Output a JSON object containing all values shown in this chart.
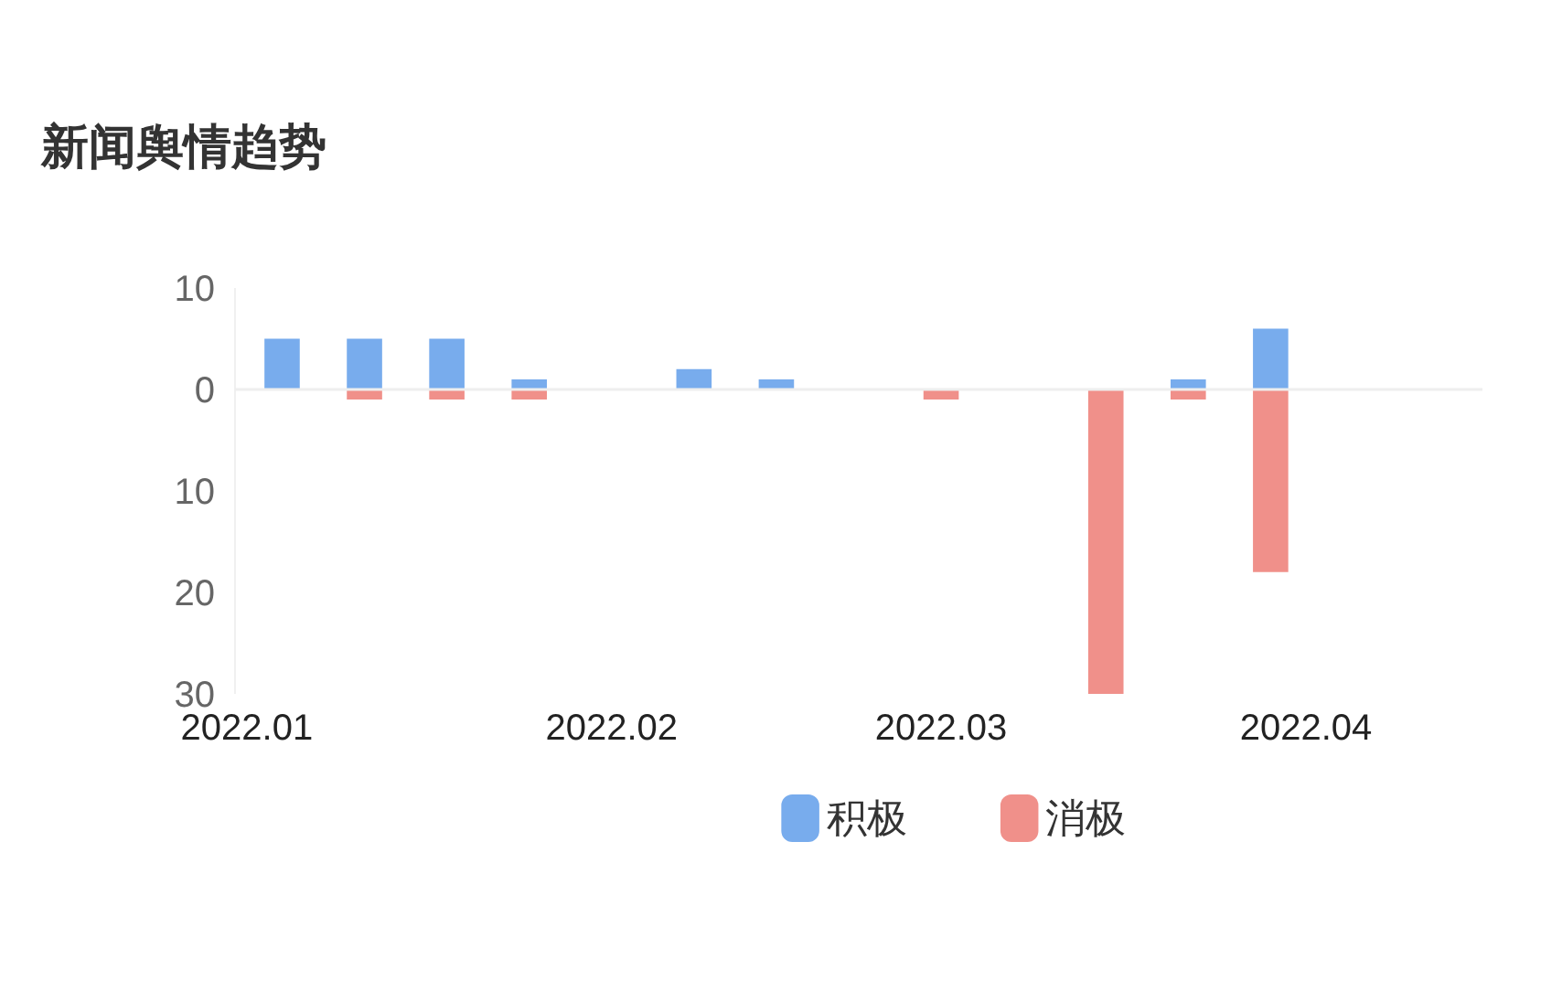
{
  "chart_data": {
    "type": "bar",
    "title": "新闻舆情趋势",
    "x": [
      "2022-01-04",
      "2022-01-11",
      "2022-01-18",
      "2022-01-25",
      "2022-02-01",
      "2022-02-08",
      "2022-02-15",
      "2022-02-22",
      "2022-03-01",
      "2022-03-08",
      "2022-03-15",
      "2022-03-22",
      "2022-03-29"
    ],
    "series": [
      {
        "name": "积极",
        "color": "#78aced",
        "values": [
          5,
          5,
          5,
          1,
          0,
          2,
          1,
          0,
          0,
          0,
          0,
          1,
          6
        ]
      },
      {
        "name": "消极",
        "color": "#f0908a",
        "values": [
          0,
          -1,
          -1,
          -1,
          0,
          0,
          0,
          0,
          -1,
          0,
          -30,
          -1,
          -18
        ]
      }
    ],
    "xlim": [
      "2021-12-31",
      "2022-04-16"
    ],
    "xticks": [
      {
        "value": "2022-01-01",
        "label": "2022.01"
      },
      {
        "value": "2022-02-01",
        "label": "2022.02"
      },
      {
        "value": "2022-03-01",
        "label": "2022.03"
      },
      {
        "value": "2022-04-01",
        "label": "2022.04"
      }
    ],
    "ylim": [
      -30,
      10
    ],
    "yticks": [
      {
        "value": 10,
        "label": "10"
      },
      {
        "value": 0,
        "label": "0"
      },
      {
        "value": -10,
        "label": "10"
      },
      {
        "value": -20,
        "label": "20"
      },
      {
        "value": -30,
        "label": "30"
      }
    ],
    "ref_lines": [
      {
        "axis": "y",
        "value": 0,
        "color": "#eeeeee"
      }
    ],
    "legend": "bottom"
  }
}
